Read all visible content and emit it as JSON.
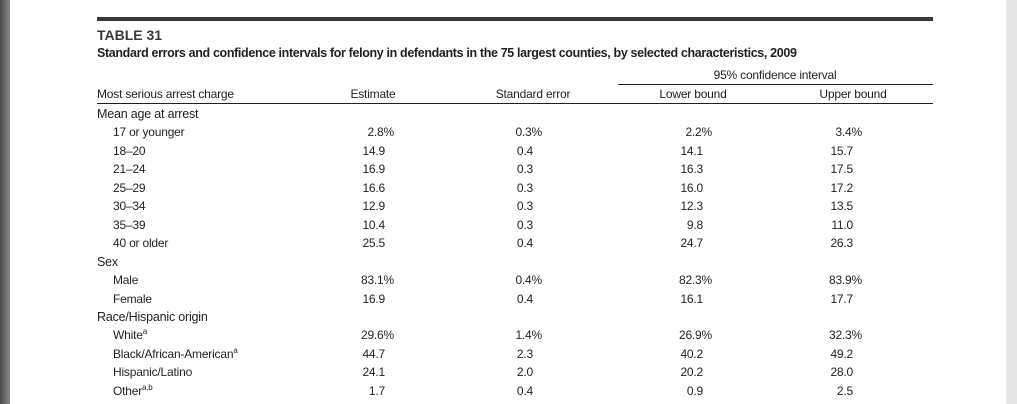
{
  "header": {
    "table_number": "TABLE 31",
    "title": "Standard errors and confidence intervals for felony in defendants in the 75 largest counties, by selected characteristics, 2009"
  },
  "table": {
    "group_header": "95% confidence interval",
    "columns": [
      "Most serious arrest charge",
      "Estimate",
      "Standard error",
      "Lower bound",
      "Upper bound"
    ],
    "sections": [
      {
        "title": "Mean age at arrest",
        "rows": [
          {
            "label": "17 or younger",
            "cells": [
              "2.8%",
              "0.3%",
              "2.2%",
              "3.4%"
            ]
          },
          {
            "label": "18–20",
            "cells": [
              "14.9",
              "0.4",
              "14.1",
              "15.7"
            ]
          },
          {
            "label": "21–24",
            "cells": [
              "16.9",
              "0.3",
              "16.3",
              "17.5"
            ]
          },
          {
            "label": "25–29",
            "cells": [
              "16.6",
              "0.3",
              "16.0",
              "17.2"
            ]
          },
          {
            "label": "30–34",
            "cells": [
              "12.9",
              "0.3",
              "12.3",
              "13.5"
            ]
          },
          {
            "label": "35–39",
            "cells": [
              "10.4",
              "0.3",
              "9.8",
              "11.0"
            ]
          },
          {
            "label": "40 or older",
            "cells": [
              "25.5",
              "0.4",
              "24.7",
              "26.3"
            ]
          }
        ]
      },
      {
        "title": "Sex",
        "rows": [
          {
            "label": "Male",
            "cells": [
              "83.1%",
              "0.4%",
              "82.3%",
              "83.9%"
            ]
          },
          {
            "label": "Female",
            "cells": [
              "16.9",
              "0.4",
              "16.1",
              "17.7"
            ]
          }
        ]
      },
      {
        "title": "Race/Hispanic origin",
        "rows": [
          {
            "label": "White",
            "sup": "a",
            "cells": [
              "29.6%",
              "1.4%",
              "26.9%",
              "32.3%"
            ]
          },
          {
            "label": "Black/African-American",
            "sup": "a",
            "cells": [
              "44.7",
              "2.3",
              "40.2",
              "49.2"
            ]
          },
          {
            "label": "Hispanic/Latino",
            "cells": [
              "24.1",
              "2.0",
              "20.2",
              "28.0"
            ]
          },
          {
            "label": "Other",
            "sup": "a,b",
            "cells": [
              "1.7",
              "0.4",
              "0.9",
              "2.5"
            ]
          }
        ]
      }
    ]
  }
}
